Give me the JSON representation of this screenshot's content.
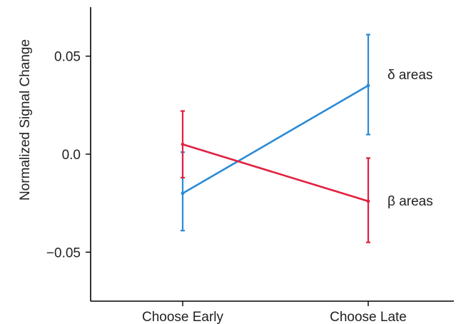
{
  "chart_data": {
    "type": "line",
    "title": "",
    "xlabel": "",
    "ylabel": "Normalized Signal Change",
    "categories": [
      "Choose Early",
      "Choose Late"
    ],
    "ylim": [
      -0.075,
      0.075
    ],
    "yticks": [
      0.05,
      0.0,
      -0.05
    ],
    "ytick_labels": [
      "0.05",
      "0.0",
      "−0.05"
    ],
    "grid": false,
    "legend": "direct labels at line ends",
    "series": [
      {
        "name": "δ areas",
        "color": "#2b8ad6",
        "values": [
          -0.02,
          0.035
        ],
        "err_low": [
          -0.039,
          0.01
        ],
        "err_high": [
          0.001,
          0.061
        ]
      },
      {
        "name": "β areas",
        "color": "#e2203f",
        "values": [
          0.005,
          -0.024
        ],
        "err_low": [
          -0.012,
          -0.045
        ],
        "err_high": [
          0.022,
          -0.002
        ]
      }
    ]
  }
}
